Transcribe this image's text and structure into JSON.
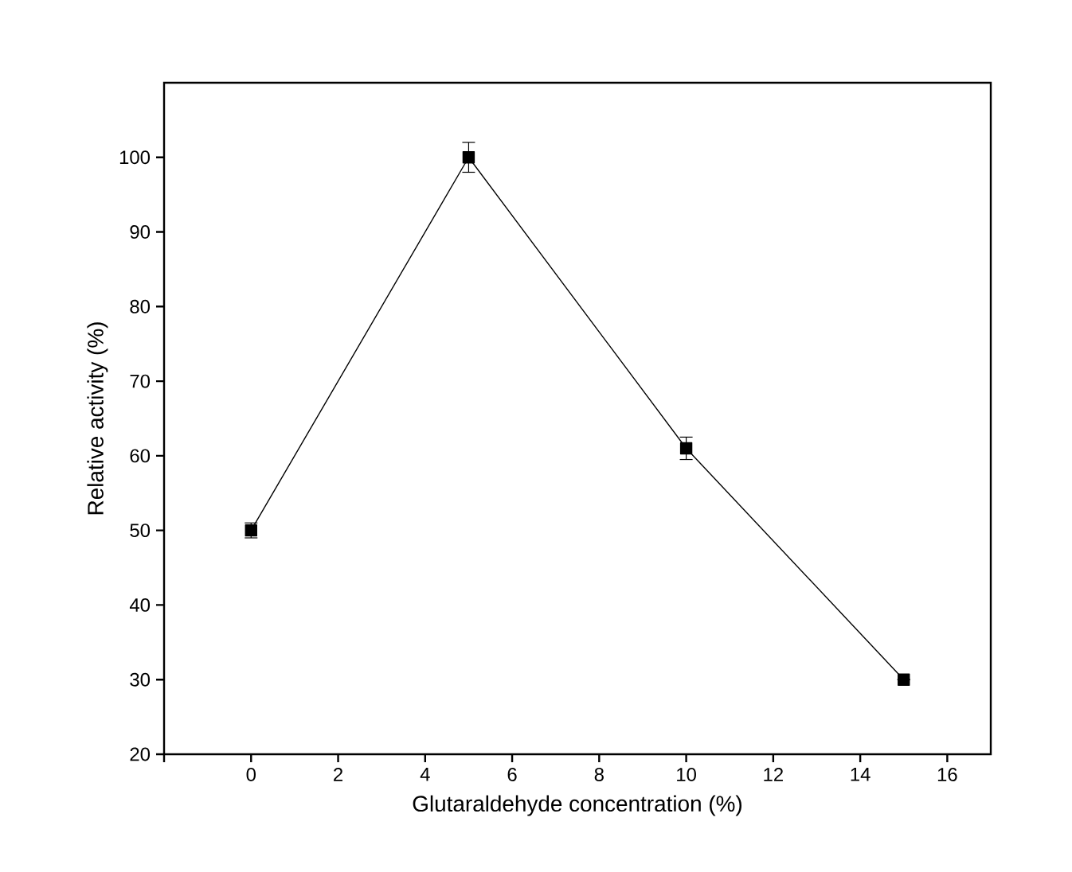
{
  "chart_data": {
    "type": "line",
    "xlabel": "Glutaraldehyde concentration (%)",
    "ylabel": "Relative activity (%)",
    "x": [
      0,
      5,
      10,
      15
    ],
    "series": [
      {
        "color": "#000000",
        "values": [
          50,
          100,
          61,
          30
        ],
        "errors": [
          1,
          2,
          1.5,
          null
        ]
      }
    ],
    "xlim": [
      -2,
      17
    ],
    "ylim": [
      20,
      110
    ],
    "xticks": [
      {
        "value": -2,
        "label": null
      },
      0,
      2,
      4,
      6,
      8,
      10,
      12,
      14,
      16
    ],
    "yticks": [
      20,
      30,
      40,
      50,
      60,
      70,
      80,
      90,
      100
    ],
    "marker": "square",
    "line_style": "solid"
  }
}
